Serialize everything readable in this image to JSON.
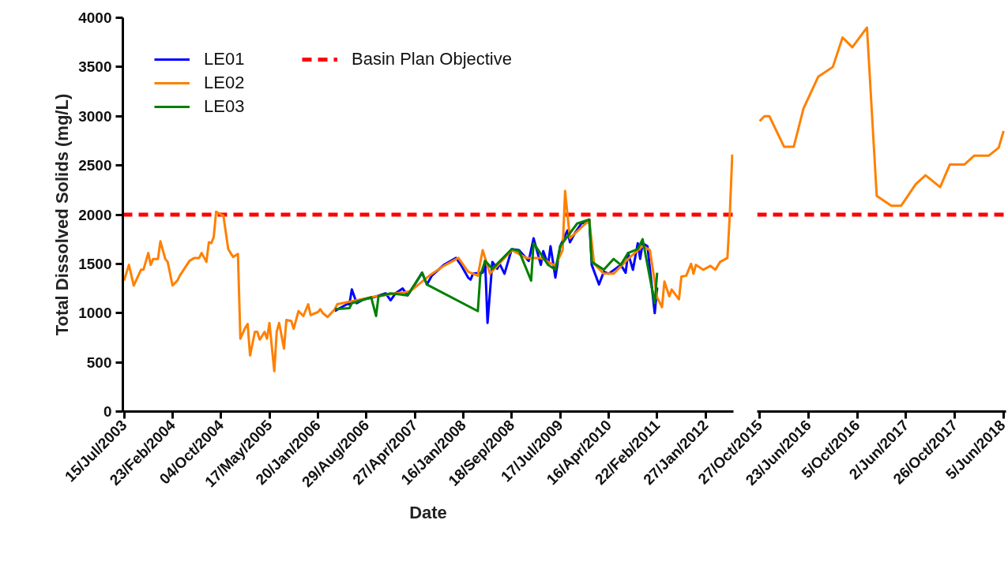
{
  "chart_data": [
    {
      "type": "line",
      "xlabel": "Date",
      "ylabel": "Total Dissolved Solids (mg/L)",
      "ylim": [
        0,
        4000
      ],
      "categories": [
        "15/Jul/2003",
        null,
        null,
        null,
        null,
        null,
        null,
        null,
        null,
        null,
        null,
        null,
        null,
        null,
        null,
        null,
        null,
        null,
        null,
        null,
        "23/Feb/2004",
        null,
        null,
        null,
        null,
        null,
        null,
        null,
        null,
        null,
        null,
        null,
        null,
        null,
        null,
        null,
        null,
        null,
        null,
        null,
        "04/Oct/2004",
        null,
        null,
        null,
        null,
        null,
        null,
        null,
        null,
        null,
        null,
        null,
        null,
        null,
        null,
        null,
        null,
        null,
        null,
        null,
        "17/May/2005",
        null,
        null,
        null,
        null,
        null,
        null,
        null,
        null,
        null,
        null,
        null,
        null,
        null,
        null,
        null,
        null,
        null,
        null,
        null,
        "20/Jan/2006",
        null,
        null,
        null,
        null,
        null,
        null,
        null,
        null,
        null,
        null,
        null,
        null,
        null,
        null,
        null,
        null,
        null,
        null,
        null,
        "29/Aug/2006",
        null,
        null,
        null,
        null,
        null,
        null,
        null,
        null,
        null,
        null,
        null,
        null,
        null,
        null,
        null,
        null,
        null,
        null,
        null,
        "27/Apr/2007",
        null,
        null,
        null,
        null,
        null,
        null,
        null,
        null,
        null,
        null,
        null,
        null,
        null,
        null,
        null,
        null,
        null,
        null,
        null,
        "16/Jan/2008",
        null,
        null,
        null,
        null,
        null,
        null,
        null,
        null,
        null,
        null,
        null,
        null,
        null,
        null,
        null,
        null,
        null,
        null,
        null,
        "18/Sep/2008",
        null,
        null,
        null,
        null,
        null,
        null,
        null,
        null,
        null,
        null,
        null,
        null,
        null,
        null,
        null,
        null,
        null,
        null,
        null,
        "17/Jul/2009",
        null,
        null,
        null,
        null,
        null,
        null,
        null,
        null,
        null,
        null,
        null,
        null,
        null,
        null,
        null,
        null,
        null,
        null,
        null,
        "16/Apr/2010",
        null,
        null,
        null,
        null,
        null,
        null,
        null,
        null,
        null,
        null,
        null,
        null,
        null,
        null,
        null,
        null,
        null,
        null,
        null,
        "22/Feb/2011",
        null,
        null,
        null,
        null,
        null,
        null,
        null,
        null,
        null,
        null,
        null,
        null,
        null,
        null,
        null,
        null,
        null,
        null,
        null,
        "27/Jan/2012",
        null,
        null,
        null,
        null,
        null,
        null,
        null,
        null,
        null,
        null,
        null
      ],
      "yticks": [
        0,
        500,
        1000,
        1500,
        2000,
        2500,
        3000,
        3500,
        4000
      ],
      "grid": false,
      "legend": "top left",
      "line_style": "solid",
      "ref_lines": [
        {
          "axis": "y",
          "value": 2000,
          "label": "Basin Plan Objective",
          "color": "#ff0000",
          "line_style": "dashed"
        }
      ],
      "series": [
        {
          "name": "LE01",
          "color": "#0000ff",
          "values": [
            null,
            null,
            null,
            null,
            null,
            null,
            null,
            null,
            null,
            null,
            null,
            null,
            null,
            null,
            null,
            null,
            null,
            null,
            null,
            null,
            null,
            null,
            null,
            null,
            null,
            null,
            null,
            null,
            null,
            null,
            null,
            null,
            null,
            null,
            null,
            null,
            null,
            null,
            null,
            null,
            null,
            null,
            null,
            null,
            null,
            null,
            null,
            null,
            null,
            null,
            null,
            null,
            null,
            null,
            null,
            null,
            null,
            null,
            null,
            null,
            null,
            null,
            null,
            null,
            null,
            null,
            null,
            null,
            null,
            null,
            null,
            null,
            null,
            null,
            null,
            null,
            null,
            null,
            null,
            null,
            null,
            null,
            null,
            null,
            null,
            null,
            null,
            1020,
            null,
            1050,
            null,
            null,
            1090,
            1090,
            1240,
            null,
            1100,
            null,
            null,
            1140,
            null,
            null,
            null,
            1160,
            null,
            null,
            null,
            null,
            1200,
            null,
            1130,
            null,
            1200,
            null,
            null,
            1250,
            null,
            1180,
            null,
            null,
            1290,
            null,
            null,
            1410,
            null,
            1290,
            null,
            1380,
            null,
            null,
            null,
            null,
            1490,
            null,
            null,
            null,
            null,
            1560,
            null,
            1490,
            null,
            null,
            1360,
            1340,
            1400,
            null,
            null,
            null,
            1410,
            1530,
            900,
            null,
            1520,
            null,
            1450,
            1500,
            null,
            1400,
            null,
            null,
            1650,
            null,
            null,
            1640,
            null,
            null,
            null,
            1530,
            null,
            1760,
            null,
            null,
            1490,
            1630,
            null,
            1490,
            1680,
            null,
            1360,
            null,
            1680,
            null,
            null,
            1840,
            1720,
            null,
            1810,
            null,
            null,
            1920,
            1910,
            null,
            1950,
            1490,
            null,
            null,
            1290,
            null,
            1420,
            null,
            1400,
            null,
            null,
            null,
            null,
            1490,
            null,
            1410,
            1610,
            null,
            1440,
            null,
            1710,
            1550,
            1710,
            null,
            1680,
            null,
            null,
            1000,
            1260,
            null,
            null,
            null,
            null,
            null,
            null,
            null,
            null,
            null,
            null,
            null,
            null,
            null,
            null,
            null,
            null,
            null,
            null,
            null,
            null,
            null,
            null,
            null,
            null,
            null,
            null,
            null,
            null,
            null,
            null,
            null
          ]
        },
        {
          "name": "LE02",
          "color": "#ff8000",
          "values": [
            1330,
            null,
            1490,
            null,
            1280,
            null,
            null,
            1440,
            1440,
            null,
            1610,
            1490,
            1550,
            null,
            1550,
            1730,
            null,
            1550,
            1520,
            null,
            1280,
            null,
            1330,
            1380,
            null,
            null,
            null,
            1530,
            null,
            1560,
            null,
            1560,
            1610,
            null,
            1520,
            1720,
            1710,
            1770,
            2030,
            null,
            2000,
            1990,
            null,
            1650,
            null,
            1570,
            null,
            1600,
            740,
            null,
            850,
            890,
            570,
            null,
            810,
            810,
            730,
            null,
            810,
            740,
            900,
            null,
            410,
            810,
            900,
            null,
            640,
            930,
            null,
            920,
            840,
            null,
            1020,
            null,
            970,
            null,
            1090,
            980,
            null,
            null,
            1010,
            1040,
            1000,
            null,
            960,
            null,
            null,
            1040,
            1090,
            null,
            null,
            null,
            1110,
            null,
            null,
            null,
            null,
            null,
            null,
            null,
            null,
            null,
            null,
            null,
            1170,
            null,
            null,
            null,
            null,
            null,
            null,
            null,
            null,
            null,
            null,
            null,
            null,
            null,
            1220,
            null,
            null,
            null,
            null,
            null,
            null,
            null,
            1380,
            null,
            null,
            null,
            null,
            null,
            1480,
            null,
            null,
            null,
            null,
            null,
            1560,
            null,
            null,
            null,
            1420,
            null,
            null,
            null,
            1380,
            null,
            1640,
            null,
            null,
            1400,
            null,
            null,
            1480,
            null,
            null,
            null,
            null,
            null,
            1640,
            null,
            null,
            null,
            null,
            null,
            1560,
            null,
            null,
            null,
            null,
            null,
            1560,
            null,
            null,
            null,
            null,
            null,
            1480,
            null,
            null,
            1640,
            2240,
            null,
            1760,
            null,
            null,
            null,
            null,
            null,
            1900,
            null,
            1940,
            null,
            1500,
            null,
            null,
            null,
            1400,
            null,
            null,
            null,
            1400,
            null,
            null,
            null,
            null,
            null,
            1550,
            null,
            null,
            null,
            null,
            null,
            1680,
            null,
            null,
            1640,
            null,
            null,
            1160,
            null,
            1060,
            1320,
            null,
            1170,
            1240,
            null,
            null,
            1140,
            1370,
            null,
            1380,
            null,
            1500,
            1400,
            1490,
            null,
            null,
            1440,
            null,
            null,
            1480,
            null,
            1440,
            null,
            1520,
            null,
            null,
            1560,
            2010,
            2610
          ]
        },
        {
          "name": "LE03",
          "color": "#008000",
          "values": [
            null,
            null,
            null,
            null,
            null,
            null,
            null,
            null,
            null,
            null,
            null,
            null,
            null,
            null,
            null,
            null,
            null,
            null,
            null,
            null,
            null,
            null,
            null,
            null,
            null,
            null,
            null,
            null,
            null,
            null,
            null,
            null,
            null,
            null,
            null,
            null,
            null,
            null,
            null,
            null,
            null,
            null,
            null,
            null,
            null,
            null,
            null,
            null,
            null,
            null,
            null,
            null,
            null,
            null,
            null,
            null,
            null,
            null,
            null,
            null,
            null,
            null,
            null,
            null,
            null,
            null,
            null,
            null,
            null,
            null,
            null,
            null,
            null,
            null,
            null,
            null,
            null,
            null,
            null,
            null,
            null,
            null,
            null,
            null,
            null,
            null,
            null,
            1040,
            null,
            null,
            null,
            null,
            null,
            1050,
            1100,
            null,
            null,
            null,
            null,
            null,
            null,
            null,
            1160,
            null,
            970,
            1170,
            null,
            null,
            null,
            null,
            1200,
            null,
            null,
            null,
            null,
            null,
            null,
            1180,
            null,
            null,
            null,
            null,
            null,
            1410,
            null,
            1290,
            null,
            null,
            null,
            null,
            null,
            null,
            null,
            null,
            null,
            null,
            null,
            null,
            null,
            null,
            null,
            null,
            null,
            null,
            null,
            null,
            1020,
            1380,
            null,
            1530,
            null,
            null,
            1450,
            null,
            null,
            null,
            null,
            null,
            null,
            null,
            1650,
            null,
            null,
            1630,
            null,
            null,
            null,
            null,
            1330,
            1710,
            null,
            null,
            null,
            null,
            null,
            1490,
            null,
            null,
            1440,
            null,
            1680,
            null,
            null,
            null,
            null,
            null,
            null,
            1910,
            null,
            null,
            null,
            null,
            1950,
            1520,
            null,
            null,
            null,
            null,
            1440,
            null,
            null,
            null,
            1550,
            null,
            null,
            1490,
            null,
            null,
            1610,
            null,
            null,
            null,
            1650,
            null,
            1750,
            null,
            null,
            null,
            null,
            1100,
            1410,
            null,
            null,
            null,
            null,
            null,
            null,
            null,
            null,
            null,
            null,
            null,
            null,
            null,
            null,
            null,
            null,
            null,
            null,
            null,
            null,
            null,
            null,
            null,
            null,
            null,
            null,
            null,
            null,
            null,
            null,
            null
          ]
        }
      ]
    },
    {
      "type": "line",
      "ylim": [
        0,
        4000
      ],
      "tick_labels": "x",
      "categories": [
        "27/Oct/2015",
        null,
        null,
        null,
        null,
        null,
        null,
        null,
        null,
        null,
        "23/Jun/2016",
        null,
        null,
        null,
        null,
        null,
        null,
        null,
        null,
        null,
        "5/Oct/2016",
        null,
        null,
        null,
        null,
        null,
        null,
        null,
        null,
        null,
        "2/Jun/2017",
        null,
        null,
        null,
        null,
        null,
        null,
        null,
        null,
        null,
        "26/Oct/2017",
        null,
        null,
        null,
        null,
        null,
        null,
        null,
        null,
        null,
        "5/Jun/2018"
      ],
      "grid": false,
      "line_style": "solid",
      "ref_lines": [
        {
          "axis": "y",
          "value": 2000,
          "color": "#ff0000",
          "line_style": "dashed"
        }
      ],
      "series": [
        {
          "color": "#ff8000",
          "values": [
            2950,
            3000,
            3000,
            null,
            null,
            2690,
            null,
            2690,
            null,
            3080,
            null,
            null,
            3400,
            null,
            null,
            3500,
            null,
            3800,
            null,
            3700,
            null,
            null,
            3900,
            null,
            2190,
            null,
            null,
            2090,
            null,
            2090,
            null,
            null,
            2310,
            null,
            2400,
            null,
            null,
            2280,
            null,
            2510,
            null,
            null,
            2510,
            null,
            2600,
            null,
            null,
            2600,
            null,
            2680,
            2850
          ]
        }
      ]
    }
  ]
}
